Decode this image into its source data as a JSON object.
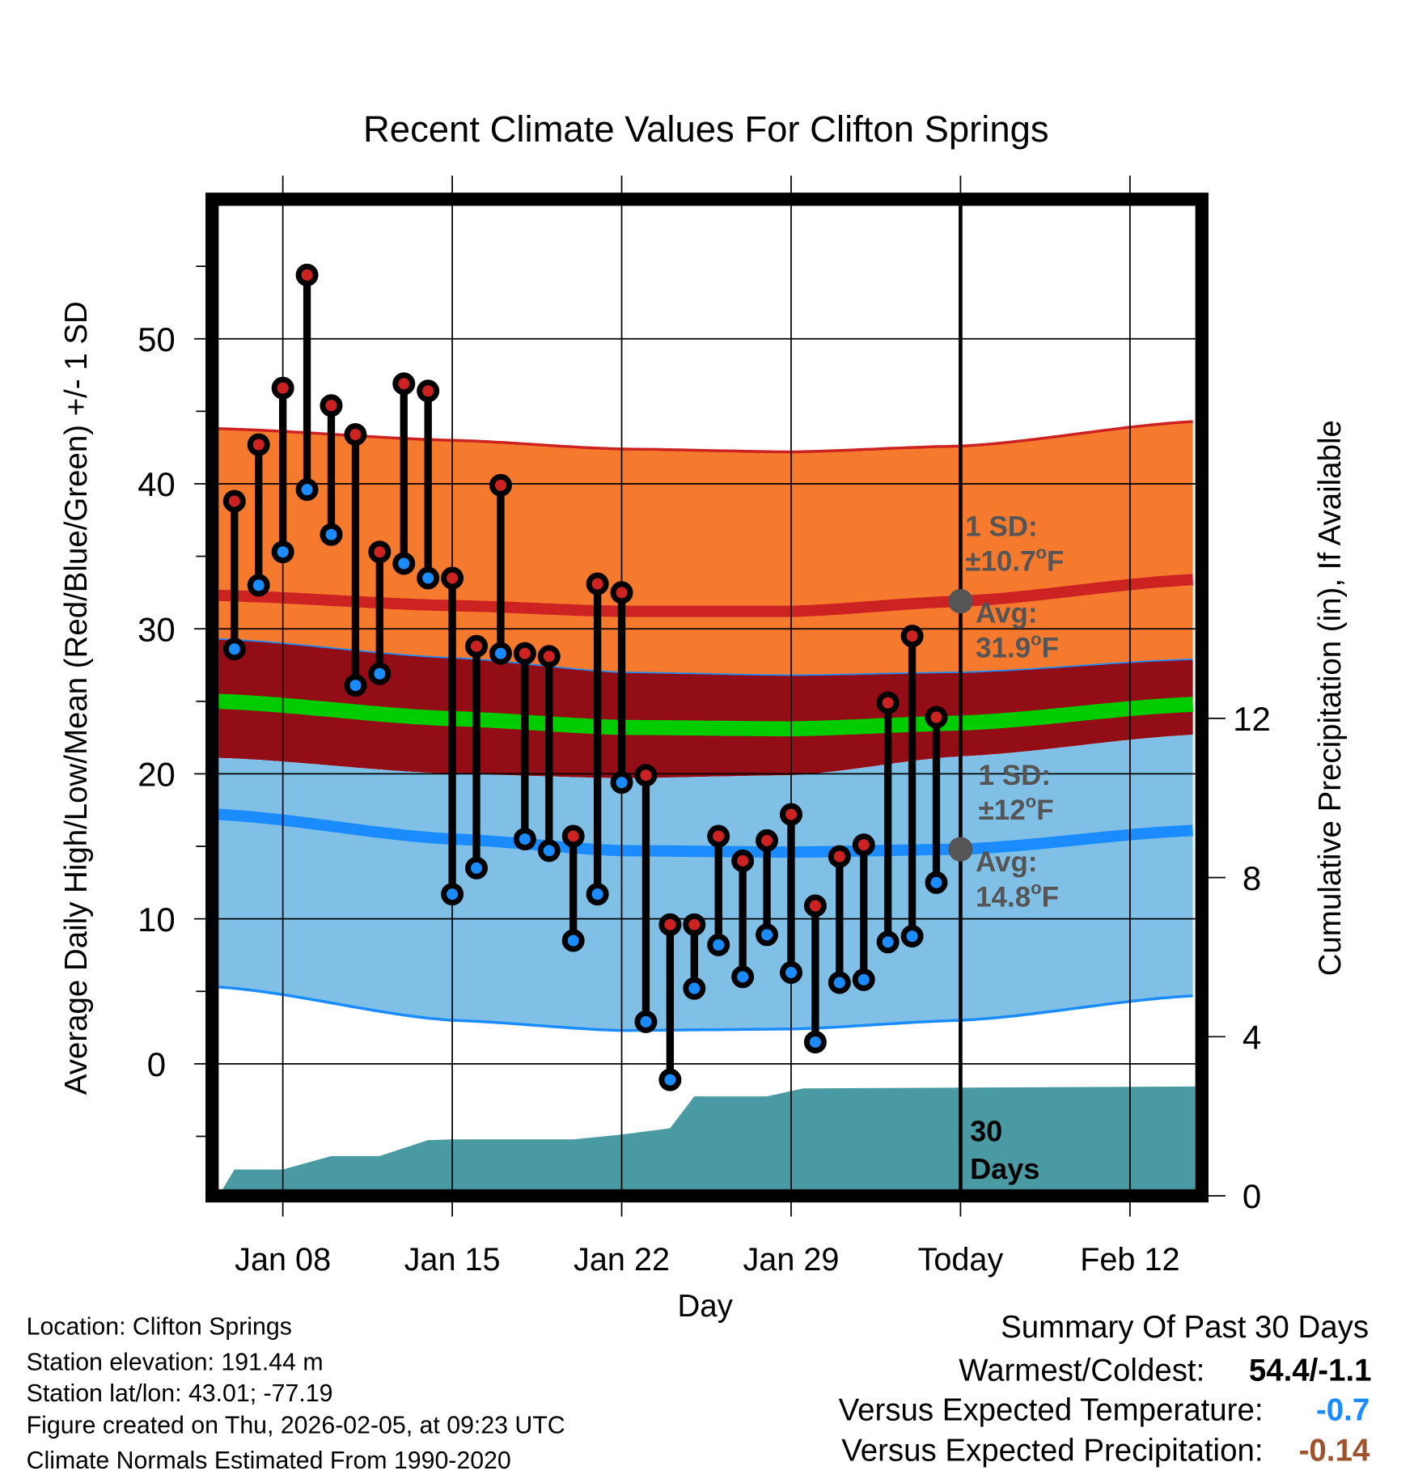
{
  "chart_data": {
    "type": "line",
    "title": "Recent Climate Values For Clifton Springs",
    "xlabel": "Day",
    "ylabel": "Average Daily High/Low/Mean (Red/Blue/Green) +/- 1 SD",
    "y2label": "Cumulative Precipitation (in), If Available",
    "ylim": [
      -9,
      59
    ],
    "y2lim": [
      0,
      30
    ],
    "x_range_days": [
      5.35,
      45.7
    ],
    "yticks": [
      0,
      10,
      20,
      30,
      40,
      50
    ],
    "y2ticks": [
      0,
      4,
      8,
      12
    ],
    "xticks": [
      {
        "day": 8,
        "label": "Jan 08"
      },
      {
        "day": 15,
        "label": "Jan 15"
      },
      {
        "day": 22,
        "label": "Jan 22"
      },
      {
        "day": 29,
        "label": "Jan 29"
      },
      {
        "day": 36,
        "label": "Today"
      },
      {
        "day": 43,
        "label": "Feb 12"
      }
    ],
    "today_day": 36,
    "days_label": [
      "30",
      "Days"
    ],
    "observed": {
      "days": [
        6,
        7,
        8,
        9,
        10,
        11,
        12,
        13,
        14,
        15,
        16,
        17,
        18,
        19,
        20,
        21,
        22,
        23,
        24,
        25,
        26,
        27,
        28,
        29,
        30,
        31,
        32,
        33,
        34,
        35
      ],
      "high": [
        38.8,
        42.7,
        46.6,
        54.4,
        45.4,
        43.4,
        35.3,
        46.9,
        46.4,
        33.5,
        28.8,
        39.9,
        28.3,
        28.1,
        15.7,
        33.1,
        32.5,
        19.9,
        9.6,
        9.6,
        15.7,
        14.0,
        15.4,
        17.2,
        10.9,
        14.3,
        15.1,
        24.9,
        29.5,
        23.9
      ],
      "low": [
        28.6,
        33.0,
        35.3,
        39.6,
        36.5,
        26.1,
        26.9,
        34.5,
        33.5,
        11.7,
        13.5,
        28.3,
        15.5,
        14.7,
        8.5,
        11.7,
        19.4,
        2.9,
        -1.1,
        5.2,
        8.2,
        6.0,
        8.9,
        6.3,
        1.5,
        5.6,
        5.8,
        8.4,
        8.8,
        12.5
      ]
    },
    "normals": {
      "days": [
        5.35,
        15,
        22,
        29,
        36,
        45.7
      ],
      "high_plus_sd": [
        43.8,
        43.0,
        42.4,
        42.2,
        42.6,
        44.3
      ],
      "high_avg": [
        32.3,
        31.6,
        31.2,
        31.2,
        31.9,
        33.4
      ],
      "high_minus_sd": [
        29.3,
        28.0,
        27.0,
        26.8,
        27.0,
        27.9
      ],
      "mean": [
        25.0,
        23.8,
        23.2,
        23.1,
        23.5,
        24.8
      ],
      "low_plus_sd": [
        21.1,
        20.0,
        19.7,
        19.9,
        21.2,
        22.7
      ],
      "low_avg": [
        17.2,
        15.5,
        14.7,
        14.6,
        14.8,
        16.1
      ],
      "low_minus_sd": [
        5.3,
        3.0,
        2.3,
        2.4,
        3.0,
        4.7
      ]
    },
    "precip": {
      "days": [
        5.35,
        6,
        8,
        10,
        12,
        13,
        14,
        15,
        20,
        22,
        24,
        25,
        28,
        29.5,
        45.7
      ],
      "cumulative": [
        0,
        0.66,
        0.66,
        1.0,
        1.0,
        1.2,
        1.4,
        1.42,
        1.42,
        1.54,
        1.7,
        2.5,
        2.5,
        2.7,
        2.75
      ]
    },
    "annotations": {
      "high_sd": [
        "1 SD:",
        "±10.7",
        "o",
        "F"
      ],
      "high_avg": [
        "Avg:",
        "31.9",
        "o",
        "F"
      ],
      "low_sd": [
        "1 SD:",
        "±12",
        "o",
        "F"
      ],
      "low_avg": [
        "Avg:",
        "14.8",
        "o",
        "F"
      ]
    },
    "colors": {
      "orange": "#f57a2e",
      "darkred": "#920d15",
      "red": "#cc2222",
      "green": "#00cc00",
      "lightblue": "#80c0e6",
      "blue": "#1a8cff",
      "teal": "#4a9aa3",
      "grey": "#555555"
    }
  },
  "footer": {
    "location": "Location: Clifton Springs",
    "elevation": "Station elevation: 191.44 m",
    "latlon": "Station lat/lon: 43.01; -77.19",
    "created": "Figure created on Thu, 2026-02-05, at 09:23 UTC",
    "normals": "Climate Normals Estimated From 1990-2020"
  },
  "summary": {
    "title": "Summary Of Past 30 Days",
    "warm_cold_label": "Warmest/Coldest:",
    "warm_cold_value": "54.4/-1.1",
    "temp_label": "Versus Expected Temperature:",
    "temp_value": "-0.7",
    "temp_color": "#1a8cff",
    "precip_label": "Versus Expected Precipitation:",
    "precip_value": "-0.14",
    "precip_color": "#a0522d"
  }
}
